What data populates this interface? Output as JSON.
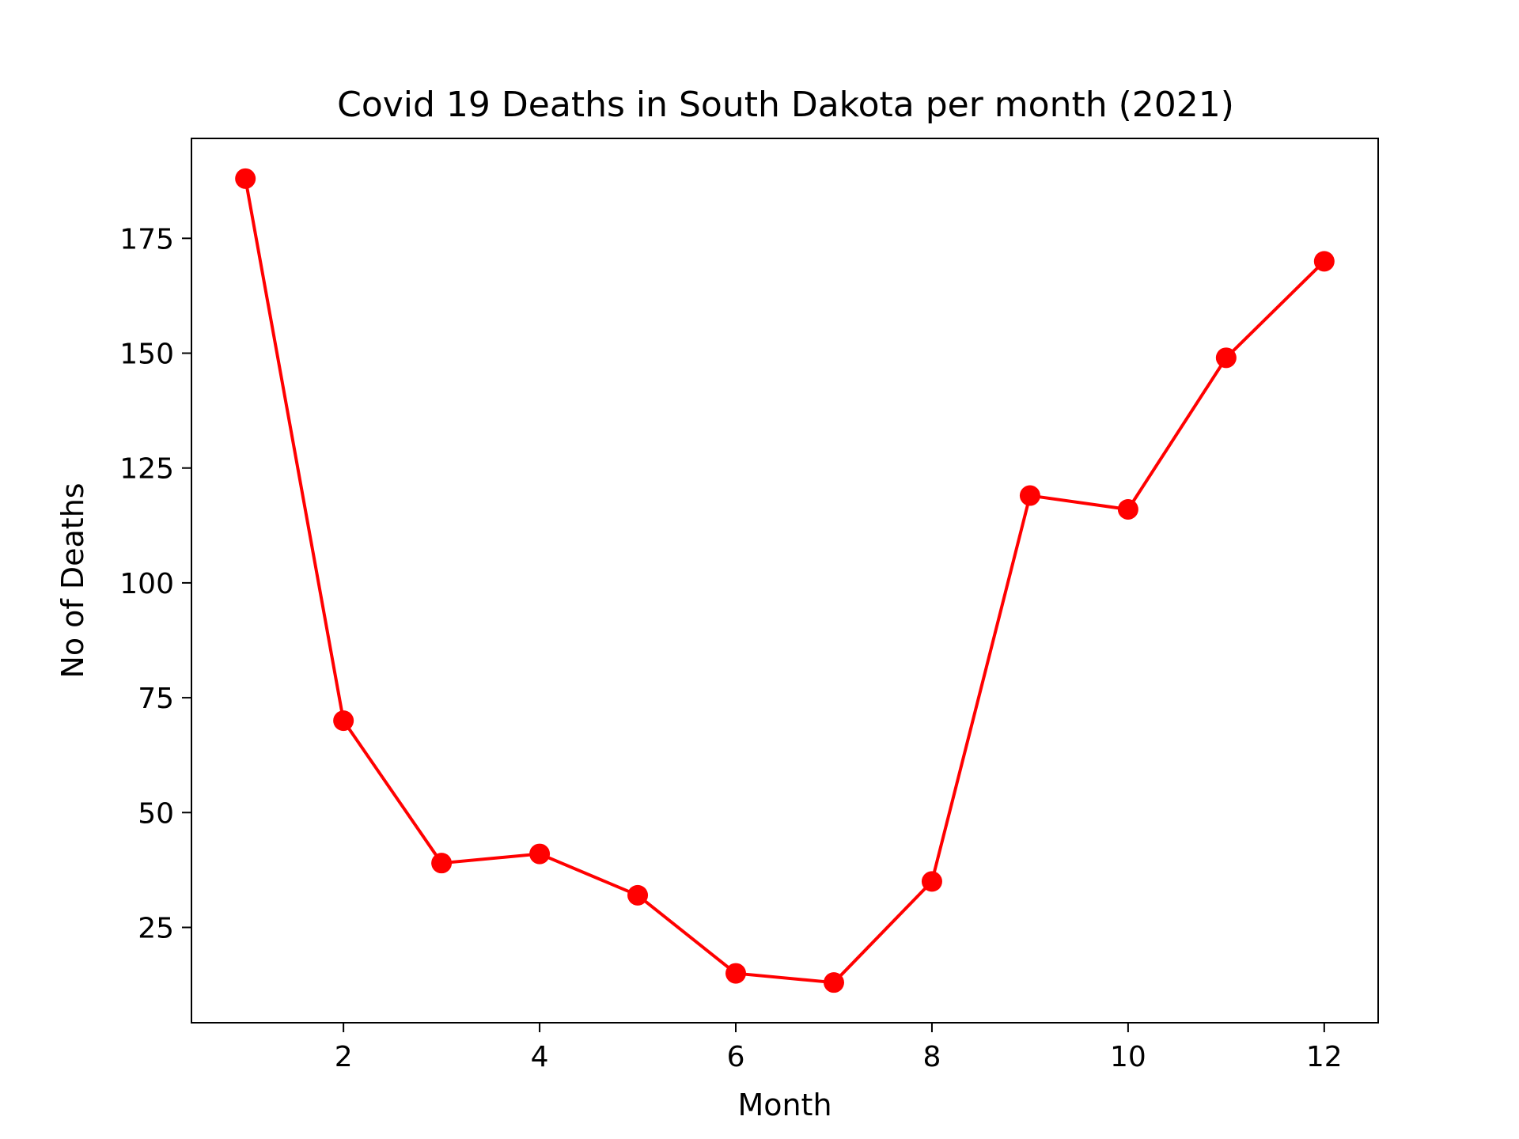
{
  "chart_data": {
    "type": "line",
    "title": "Covid 19 Deaths in South Dakota per month (2021)",
    "xlabel": "Month",
    "ylabel": "No of Deaths",
    "x": [
      1,
      2,
      3,
      4,
      5,
      6,
      7,
      8,
      9,
      10,
      11,
      12
    ],
    "series": [
      {
        "values": [
          188,
          70,
          39,
          41,
          32,
          15,
          13,
          35,
          119,
          116,
          149,
          170
        ],
        "color": "#ff0000",
        "marker": "circle"
      }
    ],
    "xlim": [
      0.45,
      12.55
    ],
    "ylim": [
      4.25,
      196.75
    ],
    "xticks": [
      2,
      4,
      6,
      8,
      10,
      12
    ],
    "yticks": [
      25,
      50,
      75,
      100,
      125,
      150,
      175
    ],
    "grid": false,
    "legend": "none"
  }
}
